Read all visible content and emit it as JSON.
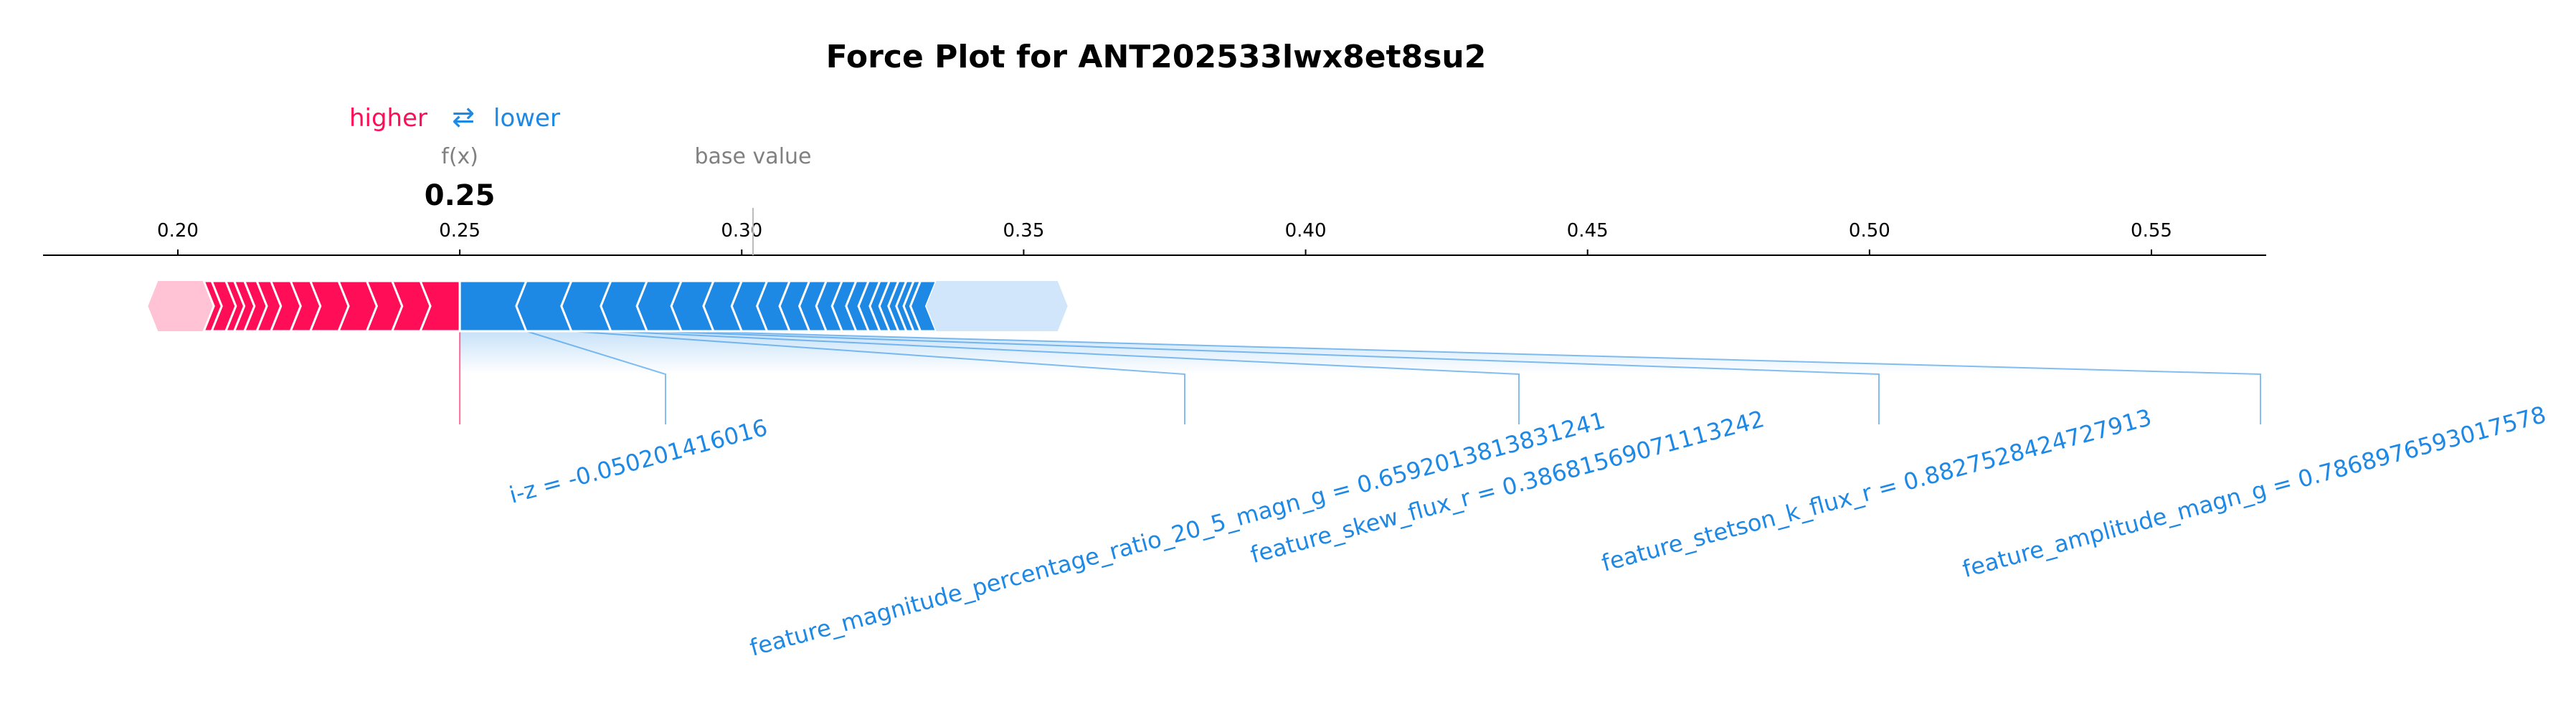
{
  "chart_data": {
    "type": "force",
    "title": "Force Plot for ANT202533lwx8et8su2",
    "legend": {
      "higher": "higher",
      "arrow": "⇄",
      "lower": "lower"
    },
    "fx_label": "f(x)",
    "fx_value": 0.25,
    "fx_display": "0.25",
    "base_value_label": "base value",
    "base_value": 0.302,
    "xlim": [
      0.173,
      0.566
    ],
    "ticks": [
      0.2,
      0.25,
      0.3,
      0.35,
      0.4,
      0.45,
      0.5,
      0.55
    ],
    "tick_labels": [
      "0.20",
      "0.25",
      "0.30",
      "0.35",
      "0.40",
      "0.45",
      "0.50",
      "0.55"
    ],
    "positive_segments": [
      {
        "start": 0.1947,
        "end": 0.2046
      },
      {
        "start": 0.2046,
        "end": 0.206
      },
      {
        "start": 0.206,
        "end": 0.2085
      },
      {
        "start": 0.2085,
        "end": 0.21
      },
      {
        "start": 0.21,
        "end": 0.2118
      },
      {
        "start": 0.2118,
        "end": 0.214
      },
      {
        "start": 0.214,
        "end": 0.2165
      },
      {
        "start": 0.2165,
        "end": 0.22
      },
      {
        "start": 0.22,
        "end": 0.2235
      },
      {
        "start": 0.2235,
        "end": 0.2285
      },
      {
        "start": 0.2285,
        "end": 0.2335
      },
      {
        "start": 0.2335,
        "end": 0.238
      },
      {
        "start": 0.238,
        "end": 0.243
      },
      {
        "start": 0.243,
        "end": 0.25
      }
    ],
    "negative_segments": [
      {
        "start": 0.25,
        "end": 0.2618,
        "label": "i-z = -0.050201416016"
      },
      {
        "start": 0.2618,
        "end": 0.2698,
        "label": "feature_magnitude_percentage_ratio_20_5_magn_g = 0.6592013813831241"
      },
      {
        "start": 0.2698,
        "end": 0.2768,
        "label": "feature_skew_flux_r = 0.38681569071113242"
      },
      {
        "start": 0.2768,
        "end": 0.2832,
        "label": "feature_stetson_k_flux_r = 0.8827528424727913"
      },
      {
        "start": 0.2832,
        "end": 0.2893,
        "label": "feature_amplitude_magn_g = 0.7868976593017578"
      },
      {
        "start": 0.2893,
        "end": 0.295
      },
      {
        "start": 0.295,
        "end": 0.3
      },
      {
        "start": 0.3,
        "end": 0.3045
      },
      {
        "start": 0.3045,
        "end": 0.3085
      },
      {
        "start": 0.3085,
        "end": 0.312
      },
      {
        "start": 0.312,
        "end": 0.315
      },
      {
        "start": 0.315,
        "end": 0.3178
      },
      {
        "start": 0.3178,
        "end": 0.3203
      },
      {
        "start": 0.3203,
        "end": 0.3225
      },
      {
        "start": 0.3225,
        "end": 0.3245
      },
      {
        "start": 0.3245,
        "end": 0.3262
      },
      {
        "start": 0.3262,
        "end": 0.3278
      },
      {
        "start": 0.3278,
        "end": 0.3292
      },
      {
        "start": 0.3292,
        "end": 0.3305
      },
      {
        "start": 0.3305,
        "end": 0.3317
      },
      {
        "start": 0.3317,
        "end": 0.3345
      },
      {
        "start": 0.3345,
        "end": 0.3578
      }
    ],
    "colors": {
      "positive": "#ff0d57",
      "positive_light": "#ffc3d5",
      "negative": "#1e88e5",
      "negative_light": "#d1e6fa",
      "label_gray": "#808080",
      "separator": "#ffffff"
    }
  }
}
